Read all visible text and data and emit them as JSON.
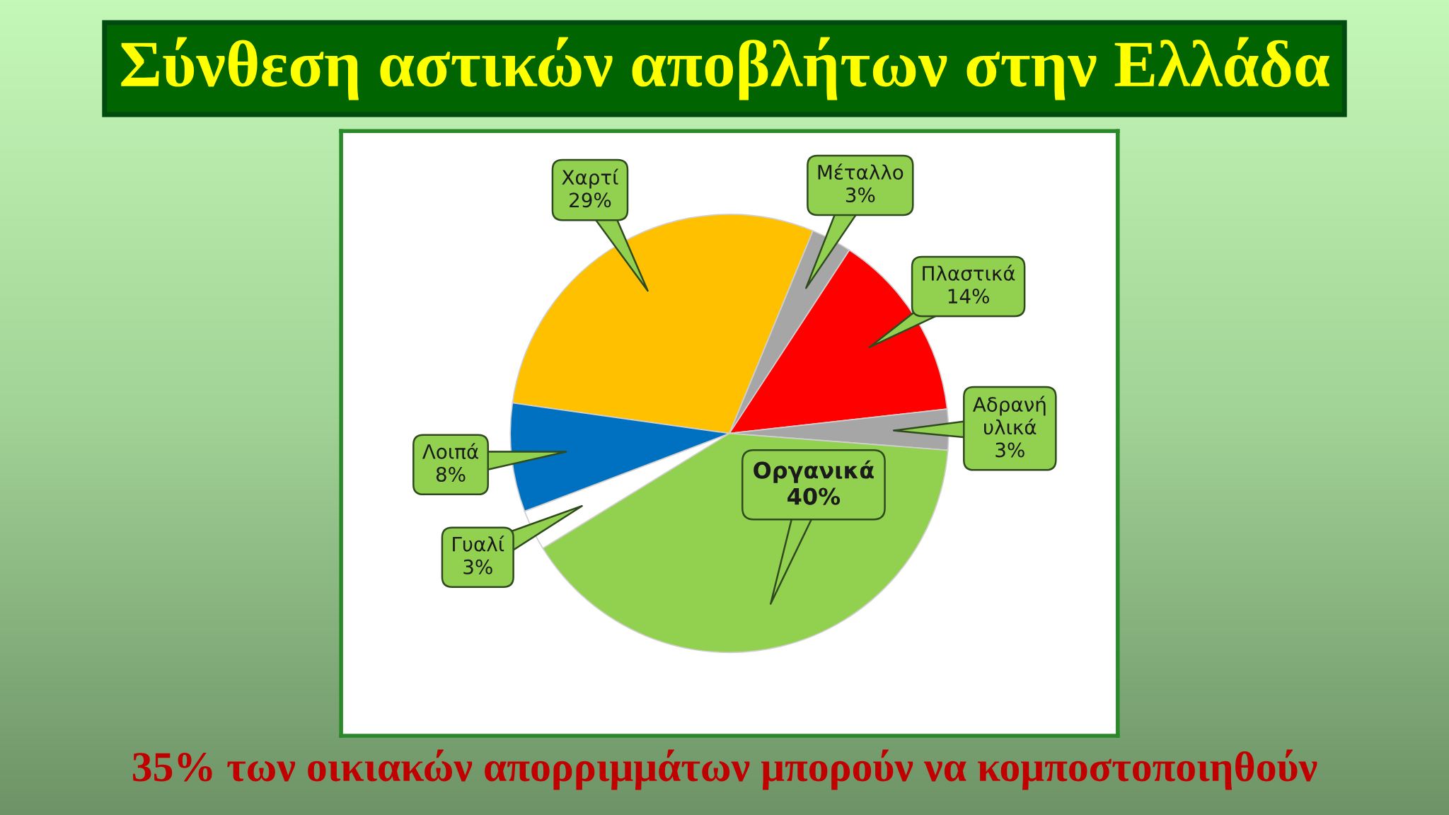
{
  "chart_data": {
    "type": "pie",
    "title": "Σύνθεση αστικών αποβλήτων στην Ελλάδα",
    "categories": [
      "Χαρτί",
      "Μέταλλο",
      "Πλαστικά",
      "Αδρανή υλικά",
      "Οργανικά",
      "Γυαλί",
      "Λοιπά"
    ],
    "values": [
      29,
      3,
      14,
      3,
      40,
      3,
      8
    ],
    "colors": [
      "#ffc000",
      "#a6a6a6",
      "#ff0000",
      "#a6a6a6",
      "#92d050",
      "#ffffff",
      "#0070c0"
    ],
    "value_labels": [
      "29%",
      "3%",
      "14%",
      "3%",
      "40%",
      "3%",
      "8%"
    ],
    "annotations": [
      "35% των οικιακών απορριμμάτων μπορούν να κομποστοποιηθούν"
    ]
  }
}
